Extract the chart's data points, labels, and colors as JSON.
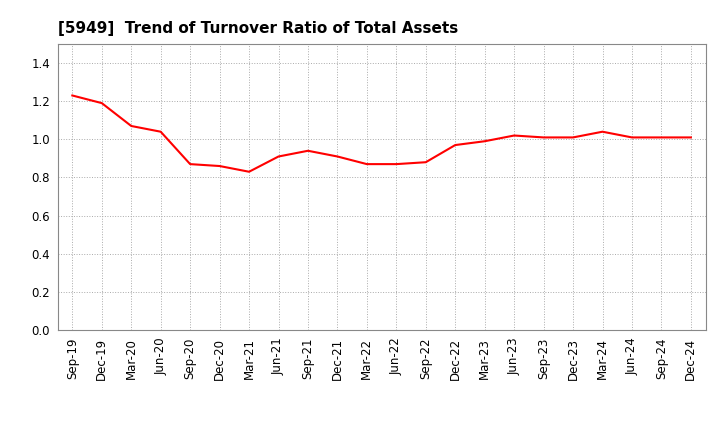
{
  "title": "[5949]  Trend of Turnover Ratio of Total Assets",
  "x_labels": [
    "Sep-19",
    "Dec-19",
    "Mar-20",
    "Jun-20",
    "Sep-20",
    "Dec-20",
    "Mar-21",
    "Jun-21",
    "Sep-21",
    "Dec-21",
    "Mar-22",
    "Jun-22",
    "Sep-22",
    "Dec-22",
    "Mar-23",
    "Jun-23",
    "Sep-23",
    "Dec-23",
    "Mar-24",
    "Jun-24",
    "Sep-24",
    "Dec-24"
  ],
  "y_values": [
    1.23,
    1.19,
    1.07,
    1.04,
    0.87,
    0.86,
    0.83,
    0.91,
    0.94,
    0.91,
    0.87,
    0.87,
    0.88,
    0.97,
    0.99,
    1.02,
    1.01,
    1.01,
    1.04,
    1.01,
    1.01,
    1.01
  ],
  "line_color": "#ff0000",
  "line_width": 1.5,
  "ylim": [
    0.0,
    1.5
  ],
  "yticks": [
    0.0,
    0.2,
    0.4,
    0.6,
    0.8,
    1.0,
    1.2,
    1.4
  ],
  "grid_color": "#aaaaaa",
  "grid_linestyle": ":",
  "background_color": "#ffffff",
  "title_fontsize": 11,
  "tick_fontsize": 8.5
}
